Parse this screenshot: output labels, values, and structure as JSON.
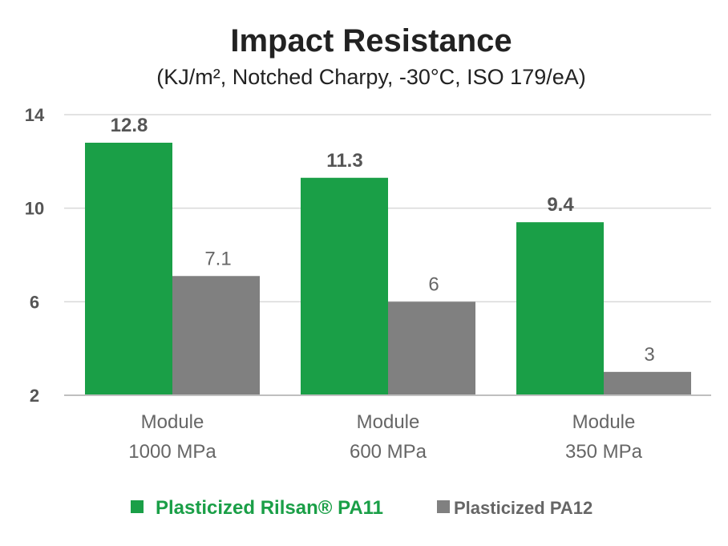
{
  "chart_data": {
    "type": "bar",
    "title": "Impact Resistance",
    "subtitle": "(KJ/m², Notched Charpy, -30°C, ISO 179/eA)",
    "categories": [
      [
        "Module",
        "1000 MPa"
      ],
      [
        "Module",
        "600 MPa"
      ],
      [
        "Module",
        "350 MPa"
      ]
    ],
    "series": [
      {
        "name": "Plasticized Rilsan® PA11",
        "values": [
          12.8,
          11.3,
          9.4
        ],
        "labels": [
          "12.8",
          "11.3",
          "9.4"
        ],
        "color": "#1a9f47"
      },
      {
        "name": "Plasticized PA12",
        "values": [
          7.1,
          6,
          3
        ],
        "labels": [
          "7.1",
          "6",
          "3"
        ],
        "color": "#808080"
      }
    ],
    "ylim": [
      2,
      14
    ],
    "yticks": [
      2,
      6,
      10,
      14
    ],
    "ytick_labels": [
      "2",
      "6",
      "10",
      "14"
    ],
    "grid": true,
    "legend": "bottom"
  }
}
